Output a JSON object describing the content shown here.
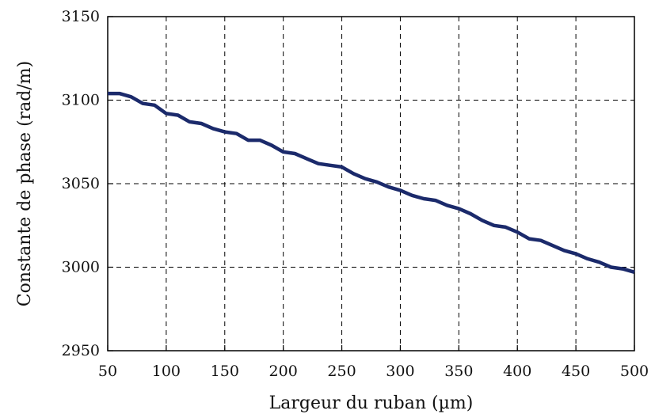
{
  "chart_data": {
    "type": "line",
    "title": "",
    "xlabel": "Largeur du ruban (µm)",
    "ylabel": "Constante de phase (rad/m)",
    "xlim": [
      50,
      500
    ],
    "ylim": [
      2950,
      3150
    ],
    "xticks": [
      50,
      100,
      150,
      200,
      250,
      300,
      350,
      400,
      450,
      500
    ],
    "yticks": [
      2950,
      3000,
      3050,
      3100,
      3150
    ],
    "xtick_labels": [
      "50",
      "100",
      "150",
      "200",
      "250",
      "300",
      "350",
      "400",
      "450",
      "500"
    ],
    "ytick_labels": [
      "2950",
      "3000",
      "3050",
      "3100",
      "3150"
    ],
    "grid": true,
    "line_color": "#1b2a6b",
    "series": [
      {
        "x": [
          50,
          60,
          70,
          80,
          90,
          100,
          110,
          120,
          130,
          140,
          150,
          160,
          170,
          180,
          190,
          200,
          210,
          220,
          230,
          240,
          250,
          260,
          270,
          280,
          290,
          300,
          310,
          320,
          330,
          340,
          350,
          360,
          370,
          380,
          390,
          400,
          410,
          420,
          430,
          440,
          450,
          460,
          470,
          480,
          490,
          500
        ],
        "y": [
          3104,
          3104,
          3102,
          3098,
          3097,
          3092,
          3091,
          3087,
          3086,
          3083,
          3081,
          3080,
          3076,
          3076,
          3073,
          3069,
          3068,
          3065,
          3062,
          3061,
          3060,
          3056,
          3053,
          3051,
          3048,
          3046,
          3043,
          3041,
          3040,
          3037,
          3035,
          3032,
          3028,
          3025,
          3024,
          3021,
          3017,
          3016,
          3013,
          3010,
          3008,
          3005,
          3003,
          3000,
          2999,
          2997
        ]
      }
    ]
  }
}
